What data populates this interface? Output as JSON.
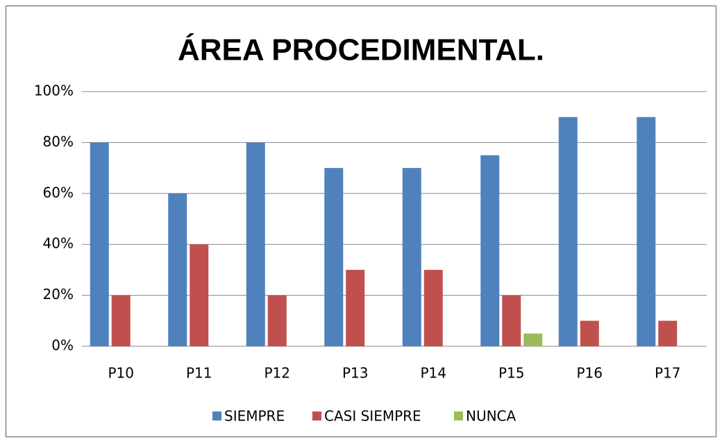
{
  "chart_data": {
    "type": "bar",
    "title": "ÁREA PROCEDIMENTAL.",
    "categories": [
      "P10",
      "P11",
      "P12",
      "P13",
      "P14",
      "P15",
      "P16",
      "P17"
    ],
    "series": [
      {
        "name": "SIEMPRE",
        "color": "#4f81bd",
        "values": [
          80,
          60,
          80,
          70,
          70,
          75,
          90,
          90
        ]
      },
      {
        "name": "CASI SIEMPRE",
        "color": "#c0504d",
        "values": [
          20,
          40,
          20,
          30,
          30,
          20,
          10,
          10
        ]
      },
      {
        "name": "NUNCA",
        "color": "#9bbb59",
        "values": [
          0,
          0,
          0,
          0,
          0,
          5,
          0,
          0
        ]
      }
    ],
    "ylim": [
      0,
      100
    ],
    "yticks": [
      {
        "value": 0,
        "label": "0%"
      },
      {
        "value": 20,
        "label": "20%"
      },
      {
        "value": 40,
        "label": "40%"
      },
      {
        "value": 60,
        "label": "60%"
      },
      {
        "value": 80,
        "label": "80%"
      },
      {
        "value": 100,
        "label": "100%"
      }
    ],
    "grid": true,
    "legend": "bottom"
  }
}
